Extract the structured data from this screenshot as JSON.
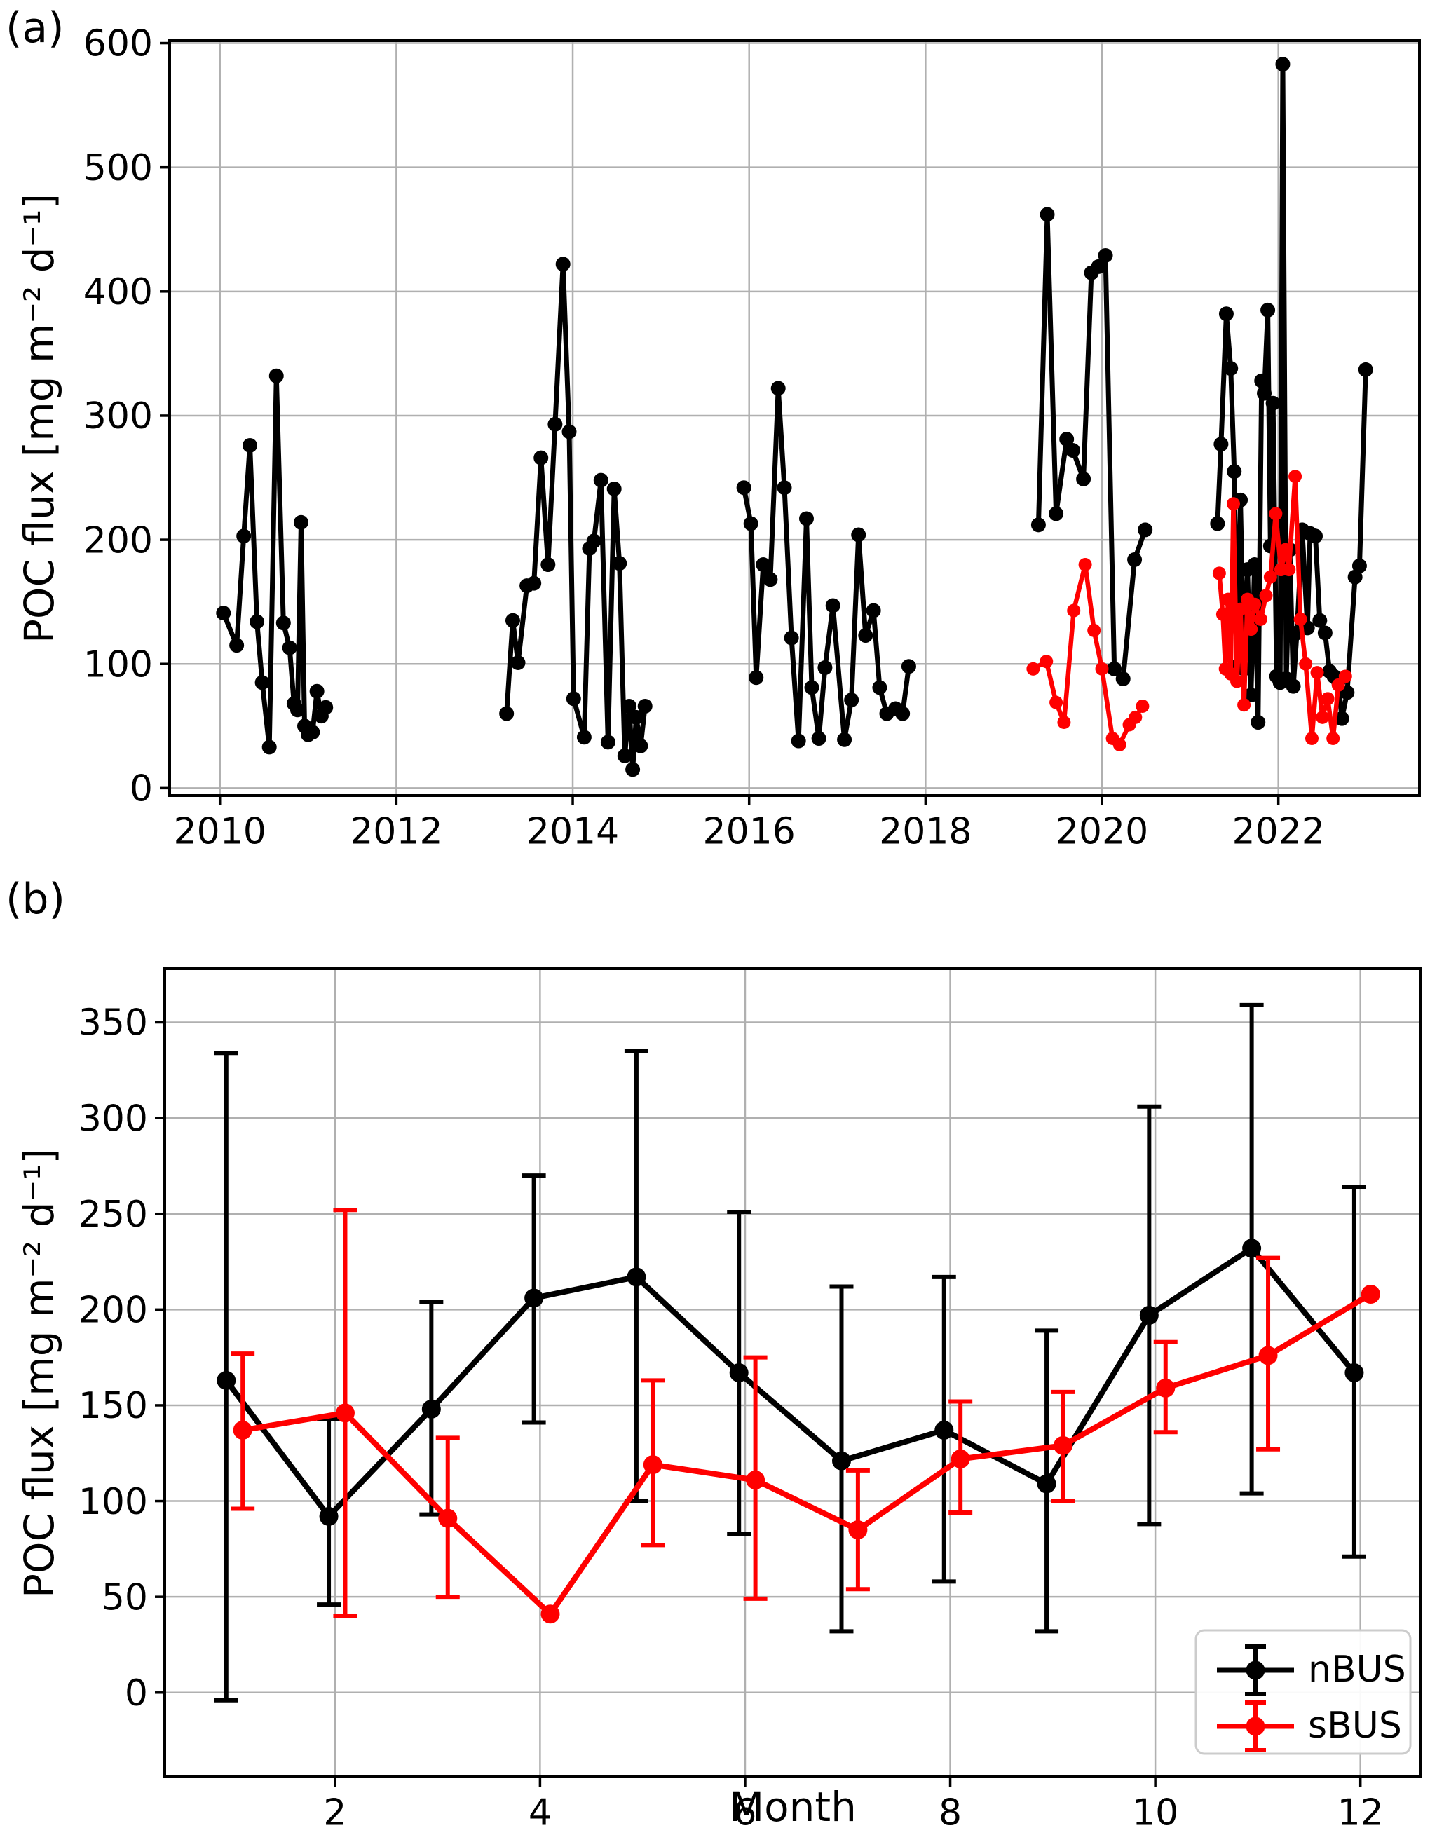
{
  "figure": {
    "background": "#ffffff",
    "panel_a_label": "(a)",
    "panel_b_label": "(b)"
  },
  "colors": {
    "nbus": "#000000",
    "sbus": "#ff0000",
    "grid": "#b0b0b0"
  },
  "chart_data": [
    {
      "type": "line",
      "panel_label": "(a)",
      "title": "",
      "xlabel": "",
      "ylabel": "POC flux  [mg m⁻² d⁻¹]",
      "xlim": [
        2009.43,
        2023.6
      ],
      "ylim": [
        -6,
        602
      ],
      "xticks": [
        2010,
        2012,
        2014,
        2016,
        2018,
        2020,
        2022
      ],
      "yticks": [
        0,
        100,
        200,
        300,
        400,
        500,
        600
      ],
      "grid": true,
      "legend_position": "none",
      "series": [
        {
          "name": "nBUS",
          "color": "#000000",
          "segments": [
            [
              [
                2010.04,
                141
              ],
              [
                2010.19,
                115
              ],
              [
                2010.27,
                203
              ],
              [
                2010.34,
                276
              ],
              [
                2010.42,
                134
              ],
              [
                2010.48,
                85
              ],
              [
                2010.56,
                33
              ],
              [
                2010.64,
                332
              ],
              [
                2010.72,
                133
              ],
              [
                2010.79,
                113
              ],
              [
                2010.84,
                68
              ],
              [
                2010.88,
                63
              ],
              [
                2010.92,
                214
              ],
              [
                2010.96,
                50
              ],
              [
                2011.0,
                43
              ],
              [
                2011.05,
                45
              ],
              [
                2011.1,
                78
              ],
              [
                2011.15,
                58
              ],
              [
                2011.2,
                65
              ]
            ],
            [
              [
                2013.25,
                60
              ],
              [
                2013.32,
                135
              ],
              [
                2013.38,
                101
              ],
              [
                2013.48,
                163
              ],
              [
                2013.56,
                165
              ],
              [
                2013.64,
                266
              ],
              [
                2013.72,
                180
              ],
              [
                2013.8,
                293
              ],
              [
                2013.89,
                422
              ],
              [
                2013.96,
                287
              ],
              [
                2014.01,
                72
              ],
              [
                2014.13,
                41
              ],
              [
                2014.19,
                193
              ],
              [
                2014.24,
                199
              ],
              [
                2014.32,
                248
              ],
              [
                2014.4,
                37
              ],
              [
                2014.47,
                241
              ],
              [
                2014.53,
                181
              ],
              [
                2014.59,
                26
              ],
              [
                2014.64,
                66
              ],
              [
                2014.68,
                15
              ],
              [
                2014.72,
                57
              ],
              [
                2014.77,
                34
              ],
              [
                2014.82,
                66
              ]
            ],
            [
              [
                2015.94,
                242
              ],
              [
                2016.02,
                213
              ],
              [
                2016.08,
                89
              ],
              [
                2016.16,
                180
              ],
              [
                2016.24,
                168
              ],
              [
                2016.33,
                322
              ],
              [
                2016.4,
                242
              ],
              [
                2016.48,
                121
              ],
              [
                2016.56,
                38
              ],
              [
                2016.65,
                217
              ],
              [
                2016.71,
                81
              ],
              [
                2016.79,
                40
              ],
              [
                2016.86,
                97
              ],
              [
                2016.95,
                147
              ],
              [
                2017.08,
                39
              ],
              [
                2017.16,
                71
              ],
              [
                2017.24,
                204
              ],
              [
                2017.32,
                123
              ],
              [
                2017.41,
                143
              ],
              [
                2017.48,
                81
              ],
              [
                2017.56,
                60
              ],
              [
                2017.66,
                64
              ],
              [
                2017.74,
                60
              ],
              [
                2017.81,
                98
              ]
            ],
            [
              [
                2019.28,
                212
              ],
              [
                2019.38,
                462
              ],
              [
                2019.48,
                221
              ],
              [
                2019.6,
                281
              ],
              [
                2019.67,
                272
              ],
              [
                2019.79,
                249
              ],
              [
                2019.88,
                415
              ],
              [
                2019.96,
                420
              ],
              [
                2020.04,
                429
              ],
              [
                2020.14,
                96
              ],
              [
                2020.24,
                88
              ],
              [
                2020.37,
                184
              ],
              [
                2020.49,
                208
              ]
            ],
            [
              [
                2021.31,
                213
              ],
              [
                2021.35,
                277
              ],
              [
                2021.41,
                382
              ],
              [
                2021.46,
                338
              ],
              [
                2021.5,
                255
              ],
              [
                2021.53,
                98
              ],
              [
                2021.57,
                232
              ],
              [
                2021.61,
                96
              ],
              [
                2021.65,
                176
              ],
              [
                2021.69,
                75
              ],
              [
                2021.73,
                180
              ],
              [
                2021.77,
                53
              ],
              [
                2021.81,
                328
              ],
              [
                2021.84,
                318
              ],
              [
                2021.88,
                385
              ],
              [
                2021.91,
                195
              ],
              [
                2021.94,
                310
              ],
              [
                2021.98,
                90
              ],
              [
                2022.02,
                85
              ],
              [
                2022.05,
                583
              ],
              [
                2022.09,
                88
              ],
              [
                2022.13,
                192
              ],
              [
                2022.17,
                82
              ],
              [
                2022.21,
                125
              ],
              [
                2022.27,
                208
              ],
              [
                2022.33,
                129
              ],
              [
                2022.36,
                205
              ],
              [
                2022.42,
                203
              ],
              [
                2022.47,
                135
              ],
              [
                2022.53,
                125
              ],
              [
                2022.58,
                94
              ],
              [
                2022.63,
                90
              ],
              [
                2022.68,
                86
              ],
              [
                2022.72,
                56
              ],
              [
                2022.78,
                77
              ],
              [
                2022.87,
                170
              ],
              [
                2022.92,
                179
              ],
              [
                2022.99,
                337
              ]
            ]
          ]
        },
        {
          "name": "sBUS",
          "color": "#ff0000",
          "segments": [
            [
              [
                2019.22,
                96
              ],
              [
                2019.37,
                102
              ],
              [
                2019.48,
                69
              ],
              [
                2019.57,
                53
              ],
              [
                2019.68,
                143
              ],
              [
                2019.81,
                180
              ],
              [
                2019.91,
                127
              ],
              [
                2020.0,
                96
              ],
              [
                2020.12,
                40
              ],
              [
                2020.2,
                35
              ],
              [
                2020.31,
                51
              ],
              [
                2020.38,
                57
              ],
              [
                2020.46,
                66
              ]
            ],
            [
              [
                2021.33,
                173
              ],
              [
                2021.37,
                140
              ],
              [
                2021.4,
                96
              ],
              [
                2021.43,
                152
              ],
              [
                2021.46,
                92
              ],
              [
                2021.49,
                229
              ],
              [
                2021.53,
                86
              ],
              [
                2021.57,
                144
              ],
              [
                2021.61,
                67
              ],
              [
                2021.65,
                152
              ],
              [
                2021.69,
                128
              ],
              [
                2021.73,
                148
              ],
              [
                2021.8,
                136
              ],
              [
                2021.86,
                155
              ],
              [
                2021.91,
                170
              ],
              [
                2021.97,
                221
              ],
              [
                2022.03,
                176
              ],
              [
                2022.08,
                192
              ],
              [
                2022.12,
                176
              ],
              [
                2022.19,
                251
              ],
              [
                2022.25,
                136
              ],
              [
                2022.31,
                100
              ],
              [
                2022.38,
                40
              ],
              [
                2022.44,
                93
              ],
              [
                2022.5,
                57
              ],
              [
                2022.56,
                72
              ],
              [
                2022.62,
                40
              ],
              [
                2022.68,
                83
              ],
              [
                2022.76,
                90
              ]
            ]
          ]
        }
      ]
    },
    {
      "type": "line-errorbar",
      "panel_label": "(b)",
      "title": "",
      "xlabel": "Month",
      "ylabel": "POC flux  [mg m⁻² d⁻¹]",
      "xlim": [
        0.34,
        12.59
      ],
      "ylim": [
        -44,
        378
      ],
      "xticks": [
        2,
        4,
        6,
        8,
        10,
        12
      ],
      "yticks": [
        0,
        50,
        100,
        150,
        200,
        250,
        300,
        350
      ],
      "grid": true,
      "legend": {
        "position": "lower right",
        "entries": [
          "nBUS",
          "sBUS"
        ]
      },
      "months": [
        1,
        2,
        3,
        4,
        5,
        6,
        7,
        8,
        9,
        10,
        11,
        12
      ],
      "series": [
        {
          "name": "nBUS",
          "color": "#000000",
          "x_offset": -0.06,
          "values": [
            163,
            92,
            148,
            206,
            217,
            167,
            121,
            137,
            109,
            197,
            232,
            167
          ],
          "err_lo": [
            -4,
            46,
            93,
            141,
            100,
            83,
            32,
            58,
            32,
            88,
            104,
            71
          ],
          "err_hi": [
            334,
            143,
            204,
            270,
            335,
            251,
            212,
            217,
            189,
            306,
            359,
            264
          ]
        },
        {
          "name": "sBUS",
          "color": "#ff0000",
          "x_offset": 0.1,
          "values": [
            137,
            146,
            91,
            41,
            119,
            111,
            85,
            122,
            129,
            159,
            176,
            208
          ],
          "err_lo": [
            96,
            40,
            50,
            null,
            77,
            49,
            54,
            94,
            100,
            136,
            127,
            null
          ],
          "err_hi": [
            177,
            252,
            133,
            null,
            163,
            175,
            116,
            152,
            157,
            183,
            227,
            null
          ]
        }
      ]
    }
  ]
}
